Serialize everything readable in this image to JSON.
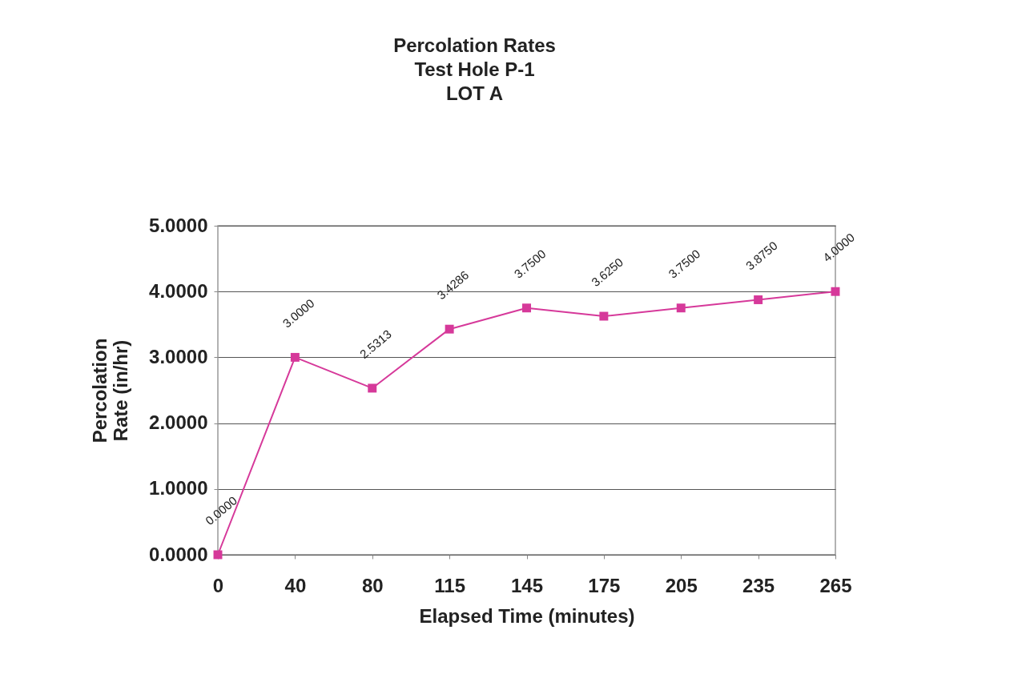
{
  "chart_data": {
    "type": "line",
    "title": "Percolation Rates\nTest Hole P-1\nLOT A",
    "xlabel": "Elapsed Time (minutes)",
    "ylabel": "Percolation\nRate  (in/hr)",
    "categories": [
      "0",
      "40",
      "80",
      "115",
      "145",
      "175",
      "205",
      "235",
      "265"
    ],
    "series": [
      {
        "color": "#d6399a",
        "values": [
          0,
          3,
          2.5313,
          3.4286,
          3.75,
          3.625,
          3.75,
          3.875,
          4
        ],
        "value_labels": [
          "0.0000",
          "3.0000",
          "2.5313",
          "3.4286",
          "3.7500",
          "3.6250",
          "3.7500",
          "3.8750",
          "4.0000"
        ]
      }
    ],
    "ylim": [
      0,
      5
    ],
    "yticks": [
      {
        "value": 0,
        "label": "0.0000"
      },
      {
        "value": 1,
        "label": "1.0000"
      },
      {
        "value": 2,
        "label": "2.0000"
      },
      {
        "value": 3,
        "label": "3.0000"
      },
      {
        "value": 4,
        "label": "4.0000"
      },
      {
        "value": 5,
        "label": "5.0000"
      }
    ],
    "grid": "y",
    "marker": "square",
    "line_style": "solid"
  }
}
